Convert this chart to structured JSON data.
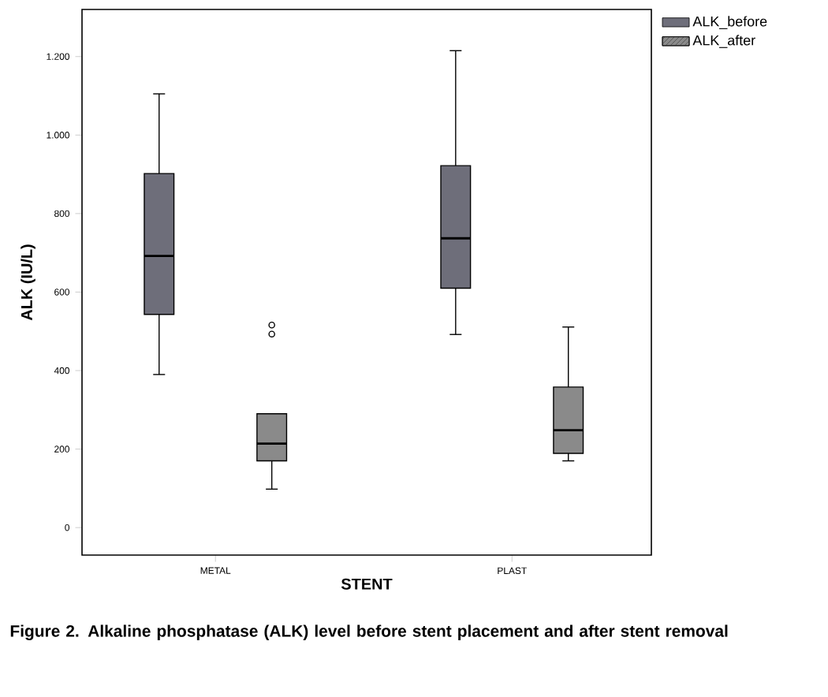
{
  "chart_data": {
    "type": "box",
    "xlabel": "STENT",
    "ylabel": "ALK (IU/L)",
    "categories": [
      "METAL",
      "PLAST"
    ],
    "series": [
      {
        "name": "ALK_before",
        "color": "#6e6e7a",
        "boxes": [
          {
            "low": 390,
            "q1": 543,
            "median": 692,
            "q3": 902,
            "high": 1105
          },
          {
            "low": 492,
            "q1": 610,
            "median": 737,
            "q3": 922,
            "high": 1215
          }
        ]
      },
      {
        "name": "ALK_after",
        "color": "#8a8a8a",
        "boxes": [
          {
            "low": 98,
            "q1": 170,
            "median": 214,
            "q3": 290,
            "high": 290,
            "outliers": [
              516,
              493
            ]
          },
          {
            "low": 170,
            "q1": 189,
            "median": 248,
            "q3": 358,
            "high": 511
          }
        ]
      }
    ],
    "ylim": [
      -70,
      1320
    ],
    "yticks": [
      0,
      200,
      400,
      600,
      800,
      {
        "value": 1000,
        "label": "1.000"
      },
      {
        "value": 1200,
        "label": "1.200"
      }
    ],
    "grid": false,
    "legend": "top right",
    "annotations": [
      "Figure 2. Alkaline phosphatase (ALK) level before stent placement and after stent removal"
    ]
  }
}
